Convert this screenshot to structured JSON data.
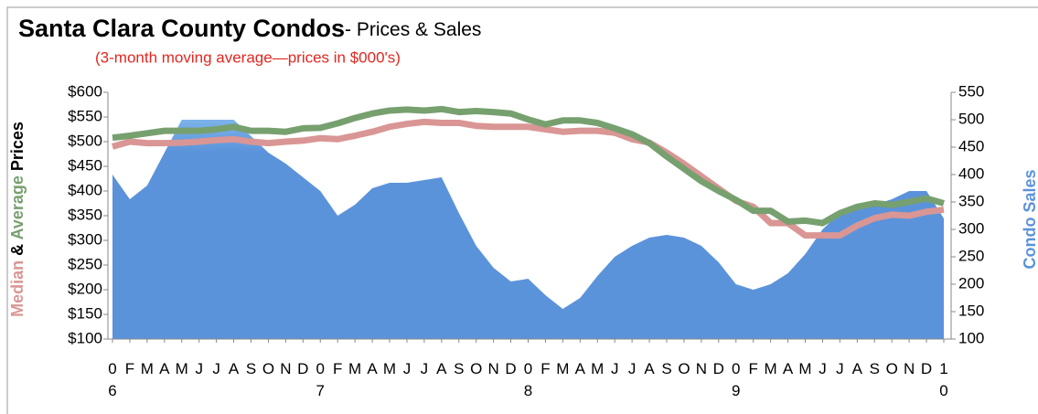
{
  "chart_data": {
    "type": "line-area",
    "title": "Santa Clara County Condos",
    "title_suffix": "- Prices & Sales",
    "subtitle": "(3-month moving average—prices in $000's)",
    "y_label_joiner": "&",
    "y_label_suffix": "Prices",
    "y2_label": "Condo Sales",
    "categories": [
      "0\n6",
      "F",
      "M",
      "A",
      "M",
      "J",
      "J",
      "A",
      "S",
      "O",
      "N",
      "D",
      "0\n7",
      "F",
      "M",
      "A",
      "M",
      "J",
      "J",
      "A",
      "S",
      "O",
      "N",
      "D",
      "0\n8",
      "F",
      "M",
      "A",
      "M",
      "J",
      "J",
      "A",
      "S",
      "O",
      "N",
      "D",
      "0\n9",
      "F",
      "M",
      "A",
      "M",
      "J",
      "J",
      "A",
      "S",
      "O",
      "N",
      "D",
      "1\n0"
    ],
    "series": [
      {
        "name": "Condo Sales",
        "color": "#5b93db",
        "axis": "y2",
        "kind": "area",
        "values": [
          400,
          355,
          380,
          440,
          500,
          500,
          500,
          500,
          470,
          440,
          420,
          395,
          370,
          325,
          345,
          375,
          385,
          385,
          390,
          395,
          330,
          270,
          230,
          205,
          210,
          180,
          155,
          175,
          215,
          250,
          270,
          285,
          290,
          285,
          270,
          240,
          200,
          190,
          200,
          220,
          255,
          300,
          330,
          345,
          345,
          355,
          370,
          370,
          320
        ]
      },
      {
        "name": "Median",
        "color": "#d99694",
        "kind": "line",
        "values": [
          490,
          500,
          497,
          497,
          498,
          500,
          503,
          505,
          500,
          497,
          500,
          502,
          507,
          505,
          512,
          520,
          530,
          536,
          540,
          538,
          538,
          532,
          530,
          530,
          530,
          525,
          520,
          522,
          522,
          518,
          505,
          498,
          478,
          455,
          430,
          405,
          380,
          368,
          335,
          335,
          310,
          310,
          310,
          330,
          345,
          352,
          350,
          358,
          362
        ]
      },
      {
        "name": "Average",
        "color": "#77a06f",
        "kind": "line",
        "values": [
          508,
          512,
          517,
          522,
          522,
          522,
          525,
          530,
          522,
          522,
          520,
          527,
          528,
          537,
          548,
          557,
          563,
          565,
          563,
          566,
          560,
          562,
          560,
          557,
          545,
          535,
          543,
          543,
          538,
          527,
          515,
          497,
          470,
          445,
          420,
          400,
          382,
          360,
          360,
          338,
          340,
          335,
          355,
          368,
          375,
          372,
          378,
          385,
          375
        ]
      }
    ],
    "ylim": [
      100,
      600
    ],
    "yticks": [
      {
        "value": 100,
        "label": "$100"
      },
      {
        "value": 150,
        "label": "$150"
      },
      {
        "value": 200,
        "label": "$200"
      },
      {
        "value": 250,
        "label": "$250"
      },
      {
        "value": 300,
        "label": "$300"
      },
      {
        "value": 350,
        "label": "$350"
      },
      {
        "value": 400,
        "label": "$400"
      },
      {
        "value": 450,
        "label": "$450"
      },
      {
        "value": 500,
        "label": "$500"
      },
      {
        "value": 550,
        "label": "$550"
      },
      {
        "value": 600,
        "label": "$600"
      }
    ],
    "y2lim": [
      100,
      550
    ],
    "y2ticks": [
      100,
      150,
      200,
      250,
      300,
      350,
      400,
      450,
      500,
      550
    ]
  }
}
